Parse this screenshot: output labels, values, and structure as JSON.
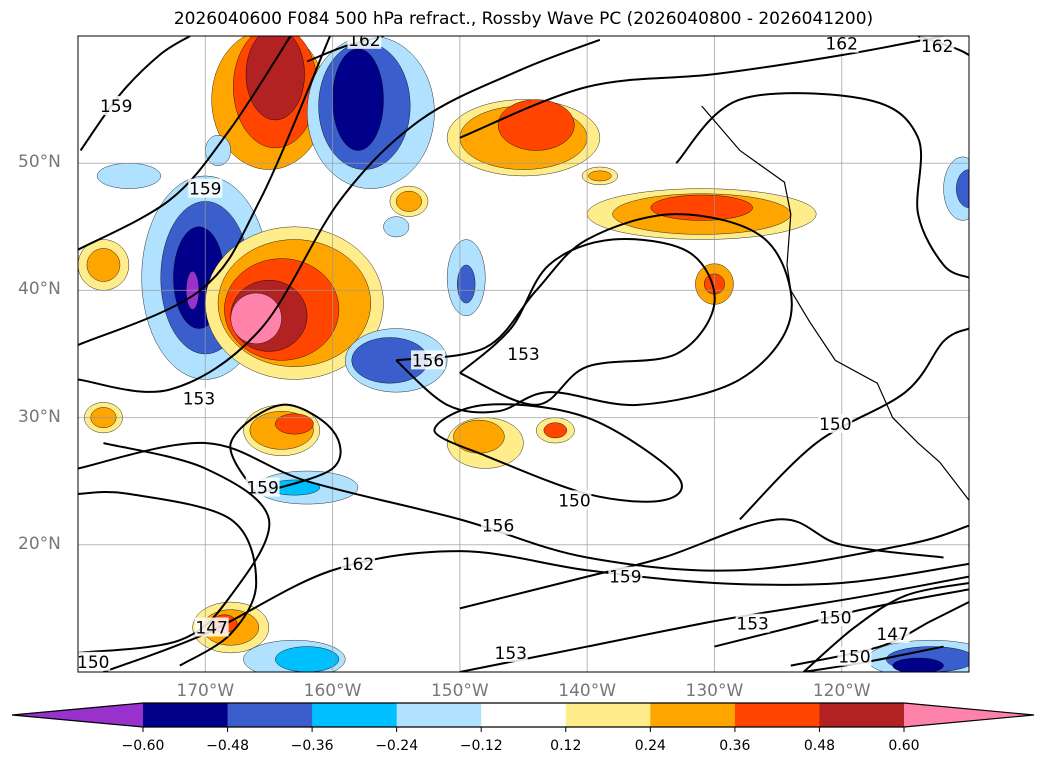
{
  "title": "2026040600 F084 500 hPa refract., Rossby Wave PC (2026040800 - 2026041200)",
  "map": {
    "lon_range": [
      -180,
      -110
    ],
    "lat_range": [
      10,
      60
    ],
    "lat_ticks": [
      {
        "lat": 50,
        "label": "50°N"
      },
      {
        "lat": 40,
        "label": "40°N"
      },
      {
        "lat": 30,
        "label": "30°N"
      },
      {
        "lat": 20,
        "label": "20°N"
      }
    ],
    "lon_ticks": [
      {
        "lon": -170,
        "label": "170°W"
      },
      {
        "lon": -160,
        "label": "160°W"
      },
      {
        "lon": -150,
        "label": "150°W"
      },
      {
        "lon": -140,
        "label": "140°W"
      },
      {
        "lon": -130,
        "label": "130°W"
      },
      {
        "lon": -120,
        "label": "120°W"
      }
    ]
  },
  "colorbar": {
    "colors": [
      "#9932cc",
      "#00008b",
      "#3a5fcd",
      "#00bfff",
      "#b0e2ff",
      "#ffffff",
      "#ffec8b",
      "#ffa500",
      "#ff4500",
      "#b22222",
      "#ff82ab"
    ],
    "tick_labels": [
      "−0.60",
      "−0.48",
      "−0.36",
      "−0.24",
      "−0.12",
      "0.12",
      "0.24",
      "0.36",
      "0.48",
      "0.60"
    ]
  },
  "shading": [
    {
      "lon": -165,
      "lat": 55,
      "rx": 4.5,
      "ry": 5.5,
      "level": 7
    },
    {
      "lon": -164.5,
      "lat": 56,
      "rx": 3.3,
      "ry": 4.8,
      "level": 8
    },
    {
      "lon": -164.5,
      "lat": 57,
      "rx": 2.3,
      "ry": 3.6,
      "level": 9
    },
    {
      "lon": -157,
      "lat": 54,
      "rx": 5,
      "ry": 6,
      "level": 4
    },
    {
      "lon": -157.5,
      "lat": 54.5,
      "rx": 3.6,
      "ry": 5,
      "level": 2
    },
    {
      "lon": -158,
      "lat": 55,
      "rx": 2,
      "ry": 4,
      "level": 1
    },
    {
      "lon": -170,
      "lat": 41,
      "rx": 5,
      "ry": 8,
      "level": 4
    },
    {
      "lon": -170,
      "lat": 41,
      "rx": 3.5,
      "ry": 6,
      "level": 2
    },
    {
      "lon": -170.5,
      "lat": 41,
      "rx": 2,
      "ry": 4,
      "level": 1
    },
    {
      "lon": -171,
      "lat": 40,
      "rx": 0.5,
      "ry": 1.5,
      "level": 0
    },
    {
      "lon": -163,
      "lat": 39,
      "rx": 7,
      "ry": 6,
      "level": 6
    },
    {
      "lon": -163,
      "lat": 39,
      "rx": 6,
      "ry": 5,
      "level": 7
    },
    {
      "lon": -164,
      "lat": 38.5,
      "rx": 4.5,
      "ry": 4,
      "level": 8
    },
    {
      "lon": -165,
      "lat": 38,
      "rx": 3,
      "ry": 2.8,
      "level": 9
    },
    {
      "lon": -166,
      "lat": 37.8,
      "rx": 2,
      "ry": 2,
      "level": 10
    },
    {
      "lon": -145,
      "lat": 52,
      "rx": 6,
      "ry": 3,
      "level": 6
    },
    {
      "lon": -145,
      "lat": 52,
      "rx": 5,
      "ry": 2.5,
      "level": 7
    },
    {
      "lon": -144,
      "lat": 53,
      "rx": 3,
      "ry": 2,
      "level": 8
    },
    {
      "lon": -131,
      "lat": 46,
      "rx": 9,
      "ry": 2,
      "level": 6
    },
    {
      "lon": -131,
      "lat": 46,
      "rx": 7,
      "ry": 1.6,
      "level": 7
    },
    {
      "lon": -131,
      "lat": 46.5,
      "rx": 4,
      "ry": 1,
      "level": 8
    },
    {
      "lon": -130,
      "lat": 40.5,
      "rx": 1.5,
      "ry": 1.6,
      "level": 7
    },
    {
      "lon": -130,
      "lat": 40.5,
      "rx": 0.8,
      "ry": 0.8,
      "level": 8
    },
    {
      "lon": -155,
      "lat": 34.5,
      "rx": 4,
      "ry": 2.5,
      "level": 4
    },
    {
      "lon": -155.5,
      "lat": 34.5,
      "rx": 3,
      "ry": 1.8,
      "level": 2
    },
    {
      "lon": -164,
      "lat": 29,
      "rx": 3,
      "ry": 2,
      "level": 6
    },
    {
      "lon": -164,
      "lat": 29,
      "rx": 2.5,
      "ry": 1.5,
      "level": 7
    },
    {
      "lon": -163,
      "lat": 29.5,
      "rx": 1.5,
      "ry": 0.8,
      "level": 8
    },
    {
      "lon": -162,
      "lat": 24.5,
      "rx": 4,
      "ry": 1.3,
      "level": 4
    },
    {
      "lon": -163,
      "lat": 24.5,
      "rx": 2,
      "ry": 0.6,
      "level": 3
    },
    {
      "lon": -148,
      "lat": 28,
      "rx": 3,
      "ry": 2,
      "level": 6
    },
    {
      "lon": -148.5,
      "lat": 28.5,
      "rx": 2,
      "ry": 1.3,
      "level": 7
    },
    {
      "lon": -142.5,
      "lat": 29,
      "rx": 1.5,
      "ry": 1,
      "level": 6
    },
    {
      "lon": -142.5,
      "lat": 29,
      "rx": 0.9,
      "ry": 0.6,
      "level": 8
    },
    {
      "lon": -168,
      "lat": 13.5,
      "rx": 3,
      "ry": 2,
      "level": 6
    },
    {
      "lon": -168,
      "lat": 13.5,
      "rx": 2.2,
      "ry": 1.4,
      "level": 7
    },
    {
      "lon": -168.5,
      "lat": 13.8,
      "rx": 1,
      "ry": 0.7,
      "level": 8
    },
    {
      "lon": -163,
      "lat": 11,
      "rx": 4,
      "ry": 1.5,
      "level": 4
    },
    {
      "lon": -162,
      "lat": 11,
      "rx": 2.5,
      "ry": 1,
      "level": 3
    },
    {
      "lon": -113,
      "lat": 11,
      "rx": 5,
      "ry": 1.5,
      "level": 4
    },
    {
      "lon": -113,
      "lat": 11,
      "rx": 3.5,
      "ry": 1,
      "level": 2
    },
    {
      "lon": -114,
      "lat": 10.5,
      "rx": 2,
      "ry": 0.6,
      "level": 1
    },
    {
      "lon": -110.5,
      "lat": 48,
      "rx": 1.5,
      "ry": 2.5,
      "level": 4
    },
    {
      "lon": -110,
      "lat": 48,
      "rx": 1,
      "ry": 1.5,
      "level": 2
    },
    {
      "lon": -178,
      "lat": 42,
      "rx": 2,
      "ry": 2,
      "level": 6
    },
    {
      "lon": -178,
      "lat": 42,
      "rx": 1.3,
      "ry": 1.3,
      "level": 7
    },
    {
      "lon": -176,
      "lat": 49,
      "rx": 2.5,
      "ry": 1,
      "level": 4
    },
    {
      "lon": -149.5,
      "lat": 41,
      "rx": 1.5,
      "ry": 3,
      "level": 4
    },
    {
      "lon": -149.5,
      "lat": 40.5,
      "rx": 0.7,
      "ry": 1.5,
      "level": 2
    },
    {
      "lon": -178,
      "lat": 30,
      "rx": 1.5,
      "ry": 1.2,
      "level": 6
    },
    {
      "lon": -178,
      "lat": 30,
      "rx": 1,
      "ry": 0.8,
      "level": 7
    },
    {
      "lon": -169,
      "lat": 51,
      "rx": 1,
      "ry": 1.2,
      "level": 4
    },
    {
      "lon": -154,
      "lat": 47,
      "rx": 1.5,
      "ry": 1.2,
      "level": 6
    },
    {
      "lon": -154,
      "lat": 47,
      "rx": 1,
      "ry": 0.8,
      "level": 7
    },
    {
      "lon": -155,
      "lat": 45,
      "rx": 1,
      "ry": 0.8,
      "level": 4
    },
    {
      "lon": -139,
      "lat": 49,
      "rx": 1.4,
      "ry": 0.7,
      "level": 6
    },
    {
      "lon": -139,
      "lat": 49,
      "rx": 0.9,
      "ry": 0.4,
      "level": 7
    }
  ],
  "contours": [
    {
      "value": "159",
      "pts": [
        [
          -179.8,
          51
        ],
        [
          -176.7,
          55.4
        ],
        [
          -173.6,
          58.5
        ],
        [
          -171.2,
          60
        ]
      ],
      "label_at": [
        -177,
        54.5
      ]
    },
    {
      "value": "159",
      "pts": [
        [
          -180,
          43.2
        ],
        [
          -172.8,
          47.1
        ],
        [
          -168.1,
          52.6
        ],
        [
          -163.3,
          60
        ]
      ],
      "label_at": [
        -170,
        48
      ]
    },
    {
      "value": "",
      "pts": [
        [
          -180,
          35.7
        ],
        [
          -170.4,
          40
        ],
        [
          -165.7,
          47.1
        ],
        [
          -160.2,
          60
        ]
      ]
    },
    {
      "value": "153",
      "pts": [
        [
          -180,
          33
        ],
        [
          -172.8,
          32.2
        ],
        [
          -165.7,
          36.9
        ],
        [
          -159.4,
          47.1
        ],
        [
          -153.1,
          53.4
        ],
        [
          -145.3,
          57.3
        ],
        [
          -139,
          59.7
        ]
      ],
      "label_at": [
        -170.5,
        31.5
      ]
    },
    {
      "value": "156",
      "pts": [
        [
          -155,
          34.5
        ],
        [
          -148,
          35.5
        ],
        [
          -144,
          40
        ],
        [
          -140,
          44
        ],
        [
          -133,
          46
        ],
        [
          -126,
          44
        ],
        [
          -124,
          38
        ],
        [
          -128,
          33
        ],
        [
          -136,
          31
        ],
        [
          -143,
          32
        ],
        [
          -147,
          30.5
        ],
        [
          -151,
          31
        ],
        [
          -155,
          34.5
        ]
      ],
      "label_at": [
        -152.5,
        34.5
      ]
    },
    {
      "value": "153",
      "pts": [
        [
          -150,
          33.5
        ],
        [
          -146,
          37
        ],
        [
          -143,
          42
        ],
        [
          -138,
          44
        ],
        [
          -132,
          43
        ],
        [
          -130,
          39
        ],
        [
          -133,
          35
        ],
        [
          -140,
          34
        ],
        [
          -144,
          31
        ],
        [
          -150,
          33.5
        ]
      ],
      "label_at": [
        -145,
        35
      ]
    },
    {
      "value": "150",
      "pts": [
        [
          -148,
          27
        ],
        [
          -140,
          24
        ],
        [
          -134,
          23.5
        ],
        [
          -133,
          25.5
        ],
        [
          -140,
          30
        ],
        [
          -148,
          31
        ],
        [
          -152,
          29
        ],
        [
          -148,
          27
        ]
      ],
      "label_at": [
        -141,
        23.5
      ]
    },
    {
      "value": "156",
      "pts": [
        [
          -180,
          26
        ],
        [
          -170,
          28
        ],
        [
          -162,
          25
        ],
        [
          -150,
          22
        ],
        [
          -140,
          19
        ],
        [
          -128,
          18
        ],
        [
          -115,
          20
        ],
        [
          -110,
          21.5
        ]
      ],
      "label_at": [
        -147,
        21.5
      ]
    },
    {
      "value": "162",
      "pts": [
        [
          -178,
          10
        ],
        [
          -170,
          13
        ],
        [
          -160,
          18
        ],
        [
          -150,
          19.5
        ],
        [
          -140,
          18
        ],
        [
          -130,
          17
        ],
        [
          -120,
          17
        ],
        [
          -110,
          18.5
        ]
      ],
      "label_at": [
        -158,
        18.5
      ]
    },
    {
      "value": "159",
      "pts": [
        [
          -166,
          24
        ],
        [
          -160,
          26
        ],
        [
          -160,
          29
        ],
        [
          -164,
          31
        ],
        [
          -168,
          28
        ],
        [
          -166,
          24
        ]
      ],
      "label_at": [
        -165.5,
        24.5
      ]
    },
    {
      "value": "159",
      "pts": [
        [
          -150,
          15
        ],
        [
          -140,
          17.5
        ],
        [
          -134,
          19
        ],
        [
          -125,
          22
        ],
        [
          -120,
          20
        ],
        [
          -112,
          19
        ]
      ],
      "label_at": [
        -137,
        17.5
      ]
    },
    {
      "value": "150",
      "pts": [
        [
          -128,
          22
        ],
        [
          -122,
          28
        ],
        [
          -115,
          32
        ],
        [
          -112,
          36
        ],
        [
          -110,
          37
        ]
      ],
      "label_at": [
        -120.5,
        29.5
      ]
    },
    {
      "value": "153",
      "pts": [
        [
          -150,
          10
        ],
        [
          -140,
          12
        ],
        [
          -130,
          14
        ],
        [
          -124,
          15
        ],
        [
          -118,
          16
        ],
        [
          -110,
          17.5
        ]
      ],
      "label_at": [
        -146,
        11.5
      ]
    },
    {
      "value": "153",
      "pts": [
        [
          -130,
          12
        ],
        [
          -124,
          13.5
        ],
        [
          -118,
          15
        ],
        [
          -110,
          16.5
        ]
      ],
      "label_at": [
        -127,
        13.8
      ]
    },
    {
      "value": "150",
      "pts": [
        [
          -123,
          10
        ],
        [
          -119,
          13.5
        ],
        [
          -115,
          16
        ],
        [
          -110,
          17
        ]
      ],
      "label_at": [
        -120.5,
        14.3
      ]
    },
    {
      "value": "147",
      "pts": [
        [
          -124,
          10.5
        ],
        [
          -117,
          12
        ],
        [
          -113,
          14
        ],
        [
          -110,
          15.5
        ]
      ],
      "label_at": [
        -116,
        13
      ]
    },
    {
      "value": "150",
      "pts": [
        [
          -180,
          11.5
        ],
        [
          -172,
          12.5
        ],
        [
          -168,
          16
        ],
        [
          -165,
          22
        ],
        [
          -170,
          26
        ],
        [
          -178,
          28
        ]
      ],
      "label_at": [
        -178.8,
        10.8
      ]
    },
    {
      "value": "147",
      "pts": [
        [
          -172,
          10.5
        ],
        [
          -168,
          13
        ],
        [
          -166,
          17
        ],
        [
          -168,
          22
        ],
        [
          -176,
          24
        ],
        [
          -180,
          24
        ]
      ],
      "label_at": [
        -169.5,
        13.5
      ]
    },
    {
      "value": "150",
      "pts": [
        [
          -123,
          10
        ],
        [
          -118,
          10.8
        ],
        [
          -112,
          12
        ]
      ],
      "label_at": [
        -119,
        11.2
      ]
    },
    {
      "value": "162",
      "pts": [
        [
          -150,
          52
        ],
        [
          -140,
          56
        ],
        [
          -130,
          57
        ],
        [
          -120,
          58.5
        ],
        [
          -112,
          60
        ]
      ],
      "label_at": [
        -120,
        59.4
      ]
    },
    {
      "value": "162",
      "pts": [
        [
          -114,
          60
        ],
        [
          -111,
          59
        ],
        [
          -110,
          58.5
        ]
      ],
      "label_at": [
        -112.5,
        59.2
      ]
    },
    {
      "value": "162",
      "pts": [
        [
          -162,
          58
        ],
        [
          -159,
          59.2
        ],
        [
          -156,
          60
        ]
      ],
      "label_at": [
        -157.5,
        59.7
      ]
    },
    {
      "value": "",
      "pts": [
        [
          -133,
          50
        ],
        [
          -128,
          55
        ],
        [
          -118,
          55
        ],
        [
          -114,
          52
        ],
        [
          -114,
          46
        ],
        [
          -112,
          42
        ],
        [
          -110,
          41
        ]
      ]
    }
  ],
  "coast": [
    [
      -131,
      54.5
    ],
    [
      -128,
      51
    ],
    [
      -124.5,
      48.5
    ],
    [
      -124,
      46
    ],
    [
      -124.3,
      42
    ],
    [
      -124,
      40
    ],
    [
      -122.5,
      37.5
    ],
    [
      -120.5,
      34.5
    ],
    [
      -117.2,
      32.7
    ],
    [
      -116,
      30
    ],
    [
      -114,
      28
    ],
    [
      -112.3,
      26.5
    ],
    [
      -110,
      23.5
    ]
  ]
}
